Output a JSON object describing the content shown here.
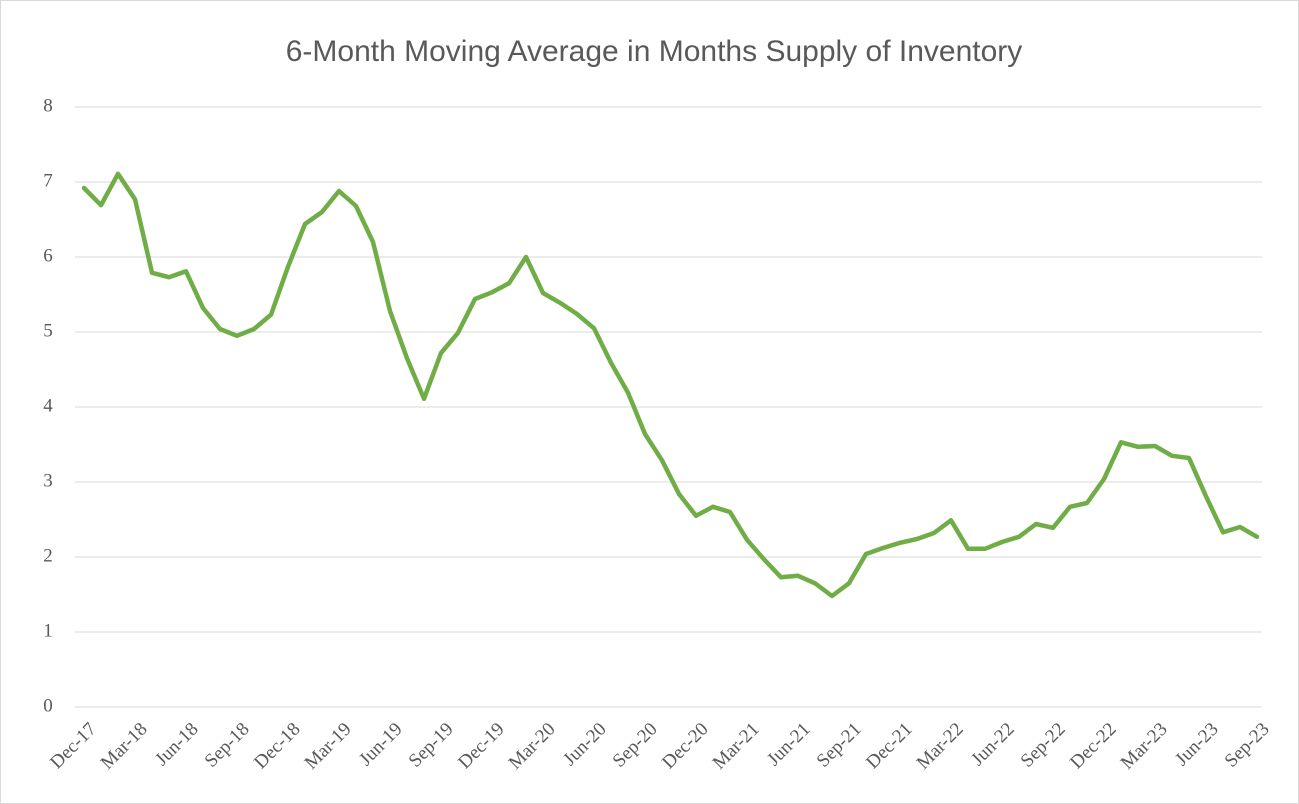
{
  "chart_data": {
    "type": "line",
    "title": "6-Month Moving Average in Months Supply of Inventory",
    "categories": [
      "Dec-17",
      null,
      null,
      "Mar-18",
      null,
      null,
      "Jun-18",
      null,
      null,
      "Sep-18",
      null,
      null,
      "Dec-18",
      null,
      null,
      "Mar-19",
      null,
      null,
      "Jun-19",
      null,
      null,
      "Sep-19",
      null,
      null,
      "Dec-19",
      null,
      null,
      "Mar-20",
      null,
      null,
      "Jun-20",
      null,
      null,
      "Sep-20",
      null,
      null,
      "Dec-20",
      null,
      null,
      "Mar-21",
      null,
      null,
      "Jun-21",
      null,
      null,
      "Sep-21",
      null,
      null,
      "Dec-21",
      null,
      null,
      "Mar-22",
      null,
      null,
      "Jun-22",
      null,
      null,
      "Sep-22",
      null,
      null,
      "Dec-22",
      null,
      null,
      "Mar-23",
      null,
      null,
      "Jun-23",
      null,
      null,
      "Sep-23"
    ],
    "series": [
      {
        "name": "Months Supply",
        "color": "#70ad47",
        "values": [
          6.92,
          6.69,
          7.11,
          6.77,
          5.79,
          5.73,
          5.81,
          5.32,
          5.04,
          4.95,
          5.04,
          5.23,
          5.87,
          6.44,
          6.6,
          6.88,
          6.68,
          6.2,
          5.28,
          4.65,
          4.11,
          4.72,
          4.99,
          5.44,
          5.53,
          5.65,
          6.0,
          5.52,
          5.39,
          5.24,
          5.05,
          4.59,
          4.19,
          3.64,
          3.29,
          2.84,
          2.55,
          2.67,
          2.6,
          2.23,
          1.97,
          1.73,
          1.75,
          1.65,
          1.48,
          1.65,
          2.04,
          2.12,
          2.19,
          2.24,
          2.32,
          2.49,
          2.11,
          2.11,
          2.2,
          2.27,
          2.44,
          2.39,
          2.67,
          2.72,
          3.04,
          3.53,
          3.47,
          3.48,
          3.35,
          3.32,
          2.81,
          2.33,
          2.4,
          2.27
        ]
      }
    ],
    "ylim": [
      0,
      8
    ],
    "yticks": [
      0,
      1,
      2,
      3,
      4,
      5,
      6,
      7,
      8
    ],
    "grid": true
  }
}
